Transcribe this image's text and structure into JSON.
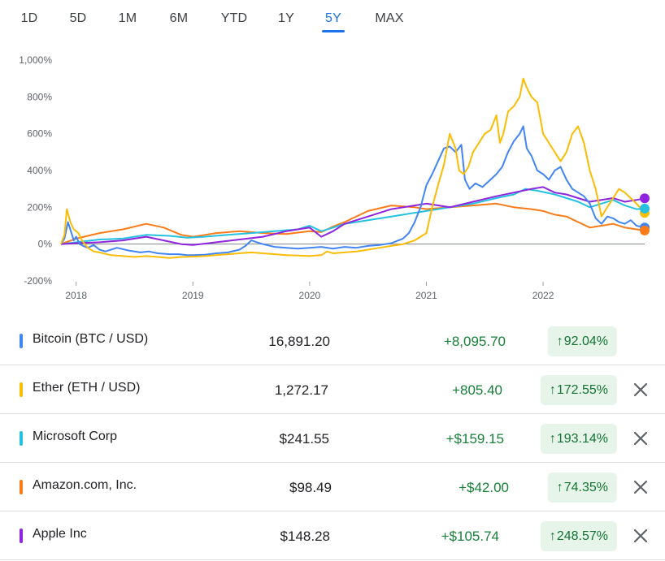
{
  "range_tabs": [
    {
      "label": "1D",
      "active": false
    },
    {
      "label": "5D",
      "active": false
    },
    {
      "label": "1M",
      "active": false
    },
    {
      "label": "6M",
      "active": false
    },
    {
      "label": "YTD",
      "active": false
    },
    {
      "label": "1Y",
      "active": false
    },
    {
      "label": "5Y",
      "active": true
    },
    {
      "label": "MAX",
      "active": false
    }
  ],
  "colors": {
    "accent": "#1a73e8",
    "gain": "#188038",
    "gain_bg": "#e6f4ea"
  },
  "chart_data": {
    "type": "line",
    "title": "",
    "xlabel": "",
    "ylabel": "",
    "ylim": [
      -200,
      1000
    ],
    "yticks": [
      {
        "value": 1000,
        "label": "1,000%"
      },
      {
        "value": 800,
        "label": "800%"
      },
      {
        "value": 600,
        "label": "600%"
      },
      {
        "value": 400,
        "label": "400%"
      },
      {
        "value": 200,
        "label": "200%"
      },
      {
        "value": 0,
        "label": "0%"
      },
      {
        "value": -200,
        "label": "-200%"
      }
    ],
    "xlim": [
      2017.87,
      2022.87
    ],
    "xticks": [
      {
        "value": 2018.0,
        "label": "2018"
      },
      {
        "value": 2019.0,
        "label": "2019"
      },
      {
        "value": 2020.0,
        "label": "2020"
      },
      {
        "value": 2021.0,
        "label": "2021"
      },
      {
        "value": 2022.0,
        "label": "2022"
      }
    ],
    "grid": false,
    "series": [
      {
        "name": "Bitcoin (BTC / USD)",
        "color": "#4285f4",
        "end_marker": true,
        "x": [
          2017.87,
          2017.9,
          2017.93,
          2017.96,
          2017.98,
          2018.0,
          2018.03,
          2018.06,
          2018.1,
          2018.15,
          2018.2,
          2018.25,
          2018.35,
          2018.45,
          2018.55,
          2018.62,
          2018.7,
          2018.8,
          2018.88,
          2018.95,
          2019.0,
          2019.1,
          2019.2,
          2019.3,
          2019.4,
          2019.45,
          2019.5,
          2019.55,
          2019.6,
          2019.7,
          2019.8,
          2019.9,
          2020.0,
          2020.1,
          2020.2,
          2020.3,
          2020.4,
          2020.5,
          2020.6,
          2020.7,
          2020.8,
          2020.85,
          2020.9,
          2020.95,
          2021.0,
          2021.05,
          2021.1,
          2021.15,
          2021.2,
          2021.25,
          2021.3,
          2021.33,
          2021.37,
          2021.42,
          2021.48,
          2021.55,
          2021.6,
          2021.65,
          2021.7,
          2021.75,
          2021.8,
          2021.83,
          2021.86,
          2021.9,
          2021.95,
          2022.0,
          2022.05,
          2022.1,
          2022.15,
          2022.2,
          2022.25,
          2022.3,
          2022.35,
          2022.4,
          2022.45,
          2022.5,
          2022.55,
          2022.6,
          2022.65,
          2022.7,
          2022.75,
          2022.8,
          2022.87
        ],
        "y": [
          0,
          30,
          120,
          60,
          20,
          40,
          0,
          -10,
          -20,
          -5,
          -30,
          -40,
          -20,
          -35,
          -45,
          -40,
          -50,
          -55,
          -55,
          -60,
          -60,
          -58,
          -50,
          -45,
          -30,
          -10,
          20,
          10,
          0,
          -15,
          -20,
          -25,
          -20,
          -15,
          -25,
          -15,
          -20,
          -10,
          -5,
          5,
          30,
          60,
          120,
          200,
          320,
          380,
          450,
          520,
          530,
          500,
          540,
          350,
          300,
          330,
          310,
          350,
          380,
          420,
          500,
          560,
          600,
          640,
          520,
          480,
          400,
          380,
          350,
          400,
          420,
          350,
          300,
          280,
          260,
          220,
          140,
          110,
          150,
          140,
          120,
          110,
          130,
          100,
          90
        ]
      },
      {
        "name": "Ether (ETH / USD)",
        "color": "#fbbc04",
        "end_marker": true,
        "x": [
          2017.87,
          2017.9,
          2017.92,
          2017.95,
          2017.98,
          2018.02,
          2018.05,
          2018.1,
          2018.15,
          2018.2,
          2018.3,
          2018.4,
          2018.5,
          2018.6,
          2018.7,
          2018.8,
          2018.9,
          2019.0,
          2019.1,
          2019.2,
          2019.3,
          2019.4,
          2019.5,
          2019.6,
          2019.7,
          2019.8,
          2019.9,
          2020.0,
          2020.1,
          2020.15,
          2020.2,
          2020.3,
          2020.4,
          2020.5,
          2020.6,
          2020.7,
          2020.8,
          2020.9,
          2021.0,
          2021.05,
          2021.1,
          2021.15,
          2021.2,
          2021.25,
          2021.28,
          2021.32,
          2021.36,
          2021.4,
          2021.45,
          2021.5,
          2021.55,
          2021.6,
          2021.63,
          2021.66,
          2021.7,
          2021.75,
          2021.8,
          2021.83,
          2021.86,
          2021.9,
          2021.95,
          2022.0,
          2022.05,
          2022.1,
          2022.15,
          2022.2,
          2022.25,
          2022.3,
          2022.35,
          2022.4,
          2022.45,
          2022.5,
          2022.55,
          2022.6,
          2022.65,
          2022.7,
          2022.75,
          2022.8,
          2022.87
        ],
        "y": [
          0,
          50,
          190,
          120,
          80,
          60,
          20,
          -20,
          -40,
          -45,
          -60,
          -65,
          -70,
          -65,
          -70,
          -75,
          -70,
          -68,
          -65,
          -60,
          -55,
          -50,
          -45,
          -50,
          -55,
          -60,
          -62,
          -65,
          -60,
          -40,
          -50,
          -45,
          -40,
          -30,
          -20,
          -10,
          0,
          20,
          60,
          200,
          320,
          430,
          600,
          520,
          400,
          380,
          420,
          500,
          550,
          600,
          620,
          700,
          550,
          600,
          720,
          750,
          800,
          900,
          850,
          800,
          770,
          600,
          550,
          500,
          450,
          500,
          600,
          640,
          550,
          400,
          300,
          150,
          200,
          250,
          300,
          280,
          250,
          220,
          170
        ]
      },
      {
        "name": "Microsoft Corp",
        "color": "#24c1e0",
        "end_marker": true,
        "x": [
          2017.87,
          2018.0,
          2018.2,
          2018.4,
          2018.6,
          2018.8,
          2018.95,
          2019.1,
          2019.3,
          2019.5,
          2019.7,
          2019.9,
          2020.0,
          2020.1,
          2020.2,
          2020.3,
          2020.5,
          2020.7,
          2020.9,
          2021.0,
          2021.2,
          2021.4,
          2021.6,
          2021.75,
          2021.85,
          2021.95,
          2022.1,
          2022.2,
          2022.3,
          2022.4,
          2022.5,
          2022.6,
          2022.7,
          2022.8,
          2022.87
        ],
        "y": [
          0,
          10,
          25,
          30,
          50,
          45,
          35,
          40,
          50,
          60,
          70,
          80,
          100,
          70,
          90,
          110,
          130,
          150,
          170,
          180,
          200,
          220,
          250,
          270,
          300,
          290,
          270,
          250,
          230,
          200,
          220,
          240,
          210,
          190,
          193
        ]
      },
      {
        "name": "Amazon.com, Inc.",
        "color": "#fa7b17",
        "end_marker": true,
        "x": [
          2017.87,
          2018.0,
          2018.2,
          2018.4,
          2018.6,
          2018.75,
          2018.9,
          2019.0,
          2019.2,
          2019.4,
          2019.6,
          2019.8,
          2020.0,
          2020.1,
          2020.2,
          2020.3,
          2020.5,
          2020.7,
          2020.9,
          2021.0,
          2021.2,
          2021.4,
          2021.6,
          2021.75,
          2021.9,
          2022.0,
          2022.1,
          2022.2,
          2022.3,
          2022.4,
          2022.5,
          2022.6,
          2022.7,
          2022.8,
          2022.87
        ],
        "y": [
          0,
          30,
          60,
          80,
          110,
          90,
          50,
          40,
          60,
          70,
          60,
          55,
          70,
          65,
          95,
          120,
          180,
          210,
          200,
          190,
          200,
          210,
          220,
          200,
          190,
          180,
          160,
          150,
          120,
          90,
          100,
          110,
          90,
          80,
          74
        ]
      },
      {
        "name": "Apple Inc",
        "color": "#8e24dd",
        "end_marker": true,
        "x": [
          2017.87,
          2018.0,
          2018.2,
          2018.4,
          2018.6,
          2018.75,
          2018.9,
          2019.0,
          2019.2,
          2019.4,
          2019.6,
          2019.8,
          2020.0,
          2020.1,
          2020.2,
          2020.3,
          2020.5,
          2020.7,
          2020.9,
          2021.0,
          2021.2,
          2021.4,
          2021.6,
          2021.75,
          2021.9,
          2022.0,
          2022.1,
          2022.2,
          2022.3,
          2022.4,
          2022.5,
          2022.6,
          2022.7,
          2022.8,
          2022.87
        ],
        "y": [
          0,
          5,
          10,
          20,
          40,
          20,
          0,
          -5,
          10,
          25,
          40,
          70,
          90,
          40,
          70,
          110,
          150,
          190,
          210,
          220,
          200,
          230,
          260,
          280,
          300,
          310,
          280,
          270,
          250,
          230,
          240,
          250,
          230,
          240,
          249
        ]
      }
    ]
  },
  "rows": [
    {
      "name": "Bitcoin (BTC / USD)",
      "color": "#4285f4",
      "price": "16,891.20",
      "change": "+8,095.70",
      "pct": "92.04%",
      "removable": false
    },
    {
      "name": "Ether (ETH / USD)",
      "color": "#fbbc04",
      "price": "1,272.17",
      "change": "+805.40",
      "pct": "172.55%",
      "removable": true
    },
    {
      "name": "Microsoft Corp",
      "color": "#24c1e0",
      "price": "$241.55",
      "change": "+$159.15",
      "pct": "193.14%",
      "removable": true
    },
    {
      "name": "Amazon.com, Inc.",
      "color": "#fa7b17",
      "price": "$98.49",
      "change": "+$42.00",
      "pct": "74.35%",
      "removable": true
    },
    {
      "name": "Apple Inc",
      "color": "#8e24dd",
      "price": "$148.28",
      "change": "+$105.74",
      "pct": "248.57%",
      "removable": true
    }
  ]
}
